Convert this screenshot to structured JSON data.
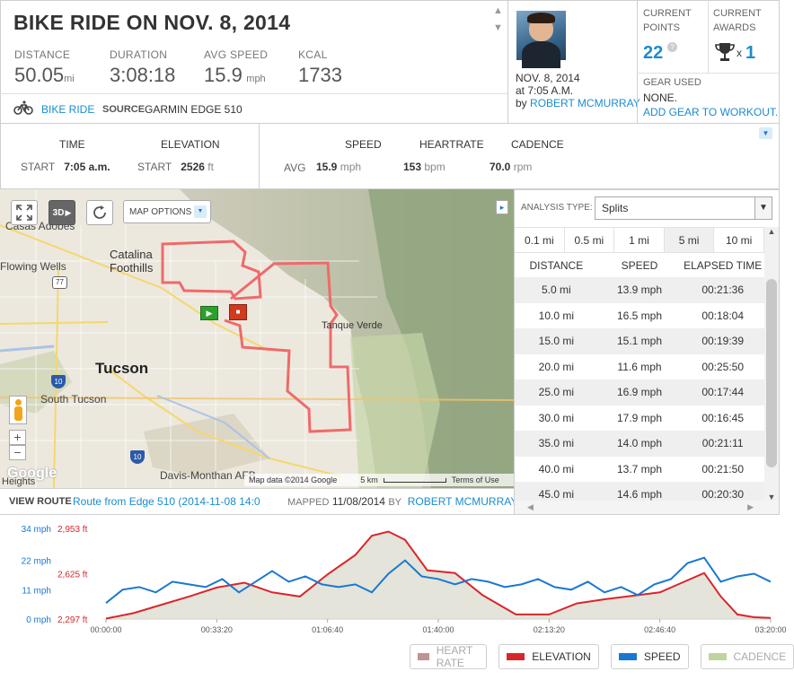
{
  "workout": {
    "title": "BIKE RIDE ON NOV. 8, 2014",
    "stats": [
      {
        "label": "DISTANCE",
        "value": "50.05",
        "unit": "mi"
      },
      {
        "label": "DURATION",
        "value": "3:08:18",
        "unit": ""
      },
      {
        "label": "AVG SPEED",
        "value": "15.9",
        "unit": "mph"
      },
      {
        "label": "KCAL",
        "value": "1733",
        "unit": ""
      }
    ],
    "activity": "BIKE RIDE",
    "source_label": "SOURCE",
    "source_value": "GARMIN EDGE 510",
    "icons": {
      "activity": "bicycle-icon",
      "scroll_up": "chevron-up-icon",
      "scroll_down": "chevron-down-icon"
    }
  },
  "profile": {
    "date": "NOV. 8, 2014",
    "time": "at 7:05 A.M.",
    "by": "by",
    "name": "ROBERT MCMURRAY"
  },
  "points": {
    "label_line1": "CURRENT",
    "label_line2": "POINTS",
    "value": "22",
    "help": "?"
  },
  "awards": {
    "label_line1": "CURRENT",
    "label_line2": "AWARDS",
    "multiplier": "x",
    "value": "1"
  },
  "gear": {
    "label": "GEAR USED",
    "value": "NONE.",
    "link": "ADD GEAR TO WORKOUT."
  },
  "summary": {
    "time_label": "TIME",
    "time_sub": "START",
    "time_value": "7:05 a.m.",
    "elev_label": "ELEVATION",
    "elev_sub": "START",
    "elev_value": "2526",
    "elev_unit": "ft",
    "avg_label": "AVG",
    "speed_label": "SPEED",
    "speed_value": "15.9",
    "speed_unit": "mph",
    "hr_label": "HEARTRATE",
    "hr_value": "153",
    "hr_unit": "bpm",
    "cad_label": "CADENCE",
    "cad_value": "70.0",
    "cad_unit": "rpm"
  },
  "map": {
    "options": "MAP OPTIONS",
    "mode_3d": "3D",
    "places": [
      "Casas Adobes",
      "Catalina Foothills",
      "Flowing Wells",
      "Tucson",
      "South Tucson",
      "Tanque Verde",
      "Davis-Monthan AFB",
      "Heights"
    ],
    "road_shields": [
      "77",
      "10",
      "10"
    ],
    "zoom_in": "+",
    "zoom_out": "−",
    "logo": "Google",
    "attribution": "Map data ©2014 Google",
    "scale": "5 km",
    "terms": "Terms of Use",
    "view_route_label": "VIEW ROUTE",
    "route_name": "Route from Edge 510 (2014-11-08 14:0",
    "mapped_label": "MAPPED",
    "mapped_date": "11/08/2014",
    "mapped_by": "BY",
    "mapped_name": "ROBERT MCMURRAY",
    "expand_arrow": "▸"
  },
  "analysis": {
    "type_label": "ANALYSIS TYPE:",
    "type_value": "Splits",
    "tabs": [
      "0.1 mi",
      "0.5 mi",
      "1 mi",
      "5 mi",
      "10 mi"
    ],
    "active_tab": 3,
    "columns": [
      "DISTANCE",
      "SPEED",
      "ELAPSED TIME"
    ],
    "rows": [
      [
        "5.0 mi",
        "13.9 mph",
        "00:21:36"
      ],
      [
        "10.0 mi",
        "16.5 mph",
        "00:18:04"
      ],
      [
        "15.0 mi",
        "15.1 mph",
        "00:19:39"
      ],
      [
        "20.0 mi",
        "11.6 mph",
        "00:25:50"
      ],
      [
        "25.0 mi",
        "16.9 mph",
        "00:17:44"
      ],
      [
        "30.0 mi",
        "17.9 mph",
        "00:16:45"
      ],
      [
        "35.0 mi",
        "14.0 mph",
        "00:21:11"
      ],
      [
        "40.0 mi",
        "13.7 mph",
        "00:21:50"
      ],
      [
        "45.0 mi",
        "14.6 mph",
        "00:20:30"
      ]
    ]
  },
  "chart_data": {
    "type": "line",
    "y_speed_ticks": [
      "34 mph",
      "22 mph",
      "11 mph",
      "0 mph"
    ],
    "y_speed_range": [
      0,
      34
    ],
    "y_elev_ticks": [
      "2,953 ft",
      "2,625 ft",
      "2,297 ft"
    ],
    "y_elev_range": [
      2297,
      2953
    ],
    "x_ticks": [
      "00:00:00",
      "00:33:20",
      "01:06:40",
      "01:40:00",
      "02:13:20",
      "02:46:40",
      "03:20:00"
    ],
    "x_range_sec": [
      0,
      12000
    ],
    "elevation_series": {
      "name": "ELEVATION",
      "color": "#d9262b",
      "x_sec": [
        0,
        500,
        1000,
        1500,
        2000,
        2500,
        3000,
        3500,
        4000,
        4500,
        4800,
        5100,
        5400,
        5800,
        6300,
        6800,
        7400,
        8000,
        8500,
        9000,
        9600,
        10000,
        10400,
        10800,
        11100,
        11400,
        11700,
        12000
      ],
      "values": [
        2300,
        2340,
        2400,
        2460,
        2525,
        2560,
        2490,
        2460,
        2620,
        2760,
        2900,
        2930,
        2870,
        2650,
        2630,
        2470,
        2330,
        2330,
        2410,
        2440,
        2470,
        2490,
        2560,
        2630,
        2460,
        2330,
        2310,
        2305
      ]
    },
    "speed_series": {
      "name": "SPEED",
      "color": "#1a78d2",
      "x_sec": [
        0,
        300,
        600,
        900,
        1200,
        1500,
        1800,
        2100,
        2400,
        2700,
        3000,
        3300,
        3600,
        3900,
        4200,
        4500,
        4800,
        5100,
        5400,
        5700,
        6000,
        6300,
        6600,
        6900,
        7200,
        7500,
        7800,
        8100,
        8400,
        8700,
        9000,
        9300,
        9600,
        9900,
        10200,
        10500,
        10800,
        11100,
        11400,
        11700,
        12000
      ],
      "values": [
        6,
        11,
        12,
        10,
        14,
        13,
        12,
        15,
        10,
        14,
        18,
        14,
        16,
        13,
        12,
        13,
        10,
        17,
        22,
        16,
        15,
        13,
        15,
        14,
        12,
        13,
        15,
        12,
        11,
        14,
        10,
        12,
        9,
        13,
        15,
        21,
        23,
        14,
        16,
        17,
        14
      ]
    },
    "cadence_fill": {
      "name": "CADENCE",
      "color": "#d9d8cb"
    },
    "legend": [
      {
        "label": "HEART RATE",
        "color": "#8b3a3a",
        "enabled": false
      },
      {
        "label": "ELEVATION",
        "color": "#d9262b",
        "enabled": true
      },
      {
        "label": "SPEED",
        "color": "#1a78d2",
        "enabled": true
      },
      {
        "label": "CADENCE",
        "color": "#8db04d",
        "enabled": false
      }
    ]
  }
}
